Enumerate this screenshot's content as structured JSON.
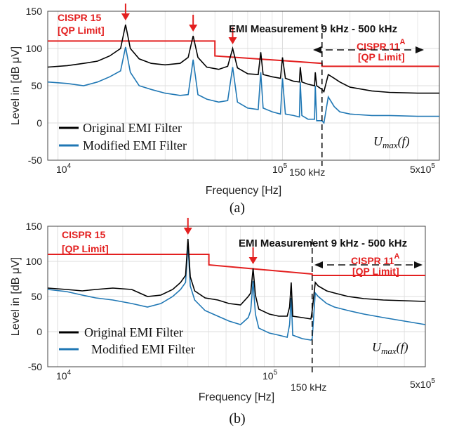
{
  "colors": {
    "original": "#000000",
    "modified": "#1f77b4",
    "limit": "#e32020",
    "grid": "#dcdcdc"
  },
  "chart_data": [
    {
      "type": "line",
      "panel": "a",
      "caption": "(a)",
      "title": "EMI Measurement 9 kHz - 500 kHz",
      "xlabel": "Frequency [Hz]",
      "ylabel": "Level in [dB μV]",
      "xscale": "log",
      "xlim": [
        9000,
        500000
      ],
      "ylim": [
        -50,
        150
      ],
      "yticks": [
        "-50",
        "0",
        "50",
        "100",
        "150"
      ],
      "xtick_labels": {
        "t1": "10",
        "t1sup": "4",
        "t2": "10",
        "t2sup": "5",
        "t3": "5x10",
        "t3sup": "5"
      },
      "marker_label": "150 kHz",
      "marker_freq": 150000,
      "limit_left_label": [
        "CISPR 15",
        "[QP Limit]"
      ],
      "limit_right_label": {
        "main": "CISPR 11",
        "sup": "A",
        "sub": "[QP Limit]"
      },
      "umax_label": {
        "main": "U",
        "sub": "max",
        "tail": "(f)"
      },
      "legend_position": "bottom-left",
      "arrows_at_freq": [
        20000,
        40000,
        60000
      ],
      "series": [
        {
          "name": "Original EMI Filter",
          "x": [
            9000,
            11000,
            13000,
            15000,
            17000,
            19000,
            20000,
            21000,
            23000,
            26000,
            30000,
            35000,
            38000,
            40000,
            42000,
            46000,
            52000,
            57000,
            60000,
            63000,
            70000,
            78000,
            80000,
            82000,
            90000,
            98000,
            100000,
            103000,
            112000,
            119000,
            120000,
            122000,
            130000,
            139000,
            140000,
            142000,
            150000,
            153000,
            160000,
            170000,
            180000,
            200000,
            250000,
            300000,
            400000,
            500000
          ],
          "y": [
            75,
            77,
            80,
            83,
            90,
            100,
            132,
            100,
            86,
            80,
            78,
            80,
            88,
            117,
            88,
            75,
            72,
            76,
            100,
            74,
            66,
            65,
            95,
            65,
            62,
            60,
            88,
            60,
            56,
            55,
            75,
            55,
            52,
            50,
            68,
            50,
            45,
            42,
            65,
            60,
            55,
            48,
            43,
            41,
            40,
            40
          ]
        },
        {
          "name": "Modified EMI Filter",
          "x": [
            9000,
            11000,
            13000,
            15000,
            17000,
            19000,
            20000,
            21000,
            23000,
            26000,
            30000,
            35000,
            38000,
            40000,
            42000,
            46000,
            52000,
            57000,
            60000,
            63000,
            70000,
            78000,
            80000,
            82000,
            90000,
            98000,
            100000,
            103000,
            112000,
            119000,
            120000,
            122000,
            130000,
            139000,
            140000,
            142000,
            150000,
            153000,
            160000,
            170000,
            180000,
            200000,
            250000,
            300000,
            400000,
            500000
          ],
          "y": [
            55,
            53,
            50,
            55,
            62,
            70,
            102,
            68,
            50,
            45,
            40,
            37,
            38,
            85,
            38,
            32,
            28,
            30,
            75,
            28,
            20,
            18,
            68,
            20,
            15,
            12,
            60,
            12,
            10,
            8,
            55,
            10,
            5,
            5,
            50,
            3,
            3,
            0,
            35,
            22,
            15,
            12,
            10,
            10,
            9,
            9
          ]
        },
        {
          "name": "Limit",
          "x": [
            9000,
            50000,
            50000,
            150000,
            150000,
            500000
          ],
          "y": [
            110,
            110,
            90,
            80,
            76,
            76
          ]
        }
      ]
    },
    {
      "type": "line",
      "panel": "b",
      "caption": "(b)",
      "title": "EMI Measurement 9 kHz - 500 kHz",
      "xlabel": "Frequency [Hz]",
      "ylabel": "Level in [dB μV]",
      "xscale": "log",
      "xlim": [
        9000,
        500000
      ],
      "ylim": [
        -50,
        150
      ],
      "yticks": [
        "-50",
        "0",
        "50",
        "100",
        "150"
      ],
      "xtick_labels": {
        "t1": "10",
        "t1sup": "4",
        "t2": "10",
        "t2sup": "5",
        "t3": "5x10",
        "t3sup": "5"
      },
      "marker_label": "150 kHz",
      "marker_freq": 150000,
      "limit_left_label": [
        "CISPR 15",
        "[QP Limit]"
      ],
      "limit_right_label": {
        "main": "CISPR 11",
        "sup": "A",
        "sub": "[QP Limit]"
      },
      "umax_label": {
        "main": "U",
        "sub": "max",
        "tail": "(f)"
      },
      "legend_position": "bottom-left",
      "arrows_at_freq": [
        40000,
        80000
      ],
      "series": [
        {
          "name": "Original EMI Filter",
          "x": [
            9000,
            11000,
            13000,
            15000,
            18000,
            22000,
            26000,
            30000,
            34000,
            37000,
            39000,
            40000,
            41000,
            43000,
            48000,
            55000,
            62000,
            70000,
            76000,
            78000,
            80000,
            82000,
            85000,
            95000,
            105000,
            115000,
            118000,
            120000,
            122000,
            135000,
            148000,
            150000,
            155000,
            160000,
            175000,
            190000,
            220000,
            260000,
            320000,
            400000,
            500000
          ],
          "y": [
            62,
            60,
            58,
            60,
            62,
            60,
            50,
            52,
            60,
            70,
            80,
            132,
            78,
            58,
            48,
            45,
            40,
            38,
            50,
            55,
            90,
            52,
            32,
            25,
            22,
            22,
            35,
            70,
            22,
            20,
            18,
            30,
            70,
            65,
            58,
            55,
            50,
            47,
            45,
            44,
            43
          ]
        },
        {
          "name": "Modified EMI Filter",
          "x": [
            9000,
            11000,
            13000,
            15000,
            18000,
            22000,
            26000,
            30000,
            34000,
            37000,
            39000,
            40000,
            41000,
            43000,
            48000,
            55000,
            62000,
            70000,
            76000,
            78000,
            80000,
            82000,
            85000,
            95000,
            105000,
            115000,
            118000,
            120000,
            122000,
            135000,
            148000,
            150000,
            155000,
            160000,
            175000,
            190000,
            220000,
            260000,
            320000,
            400000,
            500000
          ],
          "y": [
            60,
            57,
            52,
            48,
            45,
            40,
            35,
            40,
            50,
            60,
            70,
            125,
            65,
            45,
            30,
            22,
            15,
            10,
            20,
            30,
            72,
            25,
            5,
            -2,
            -5,
            -8,
            10,
            48,
            -5,
            -10,
            -12,
            -10,
            55,
            50,
            40,
            35,
            30,
            25,
            20,
            15,
            10
          ]
        },
        {
          "name": "Limit",
          "x": [
            9000,
            50000,
            50000,
            150000,
            150000,
            500000
          ],
          "y": [
            110,
            110,
            95,
            82,
            80,
            80
          ]
        }
      ]
    }
  ]
}
